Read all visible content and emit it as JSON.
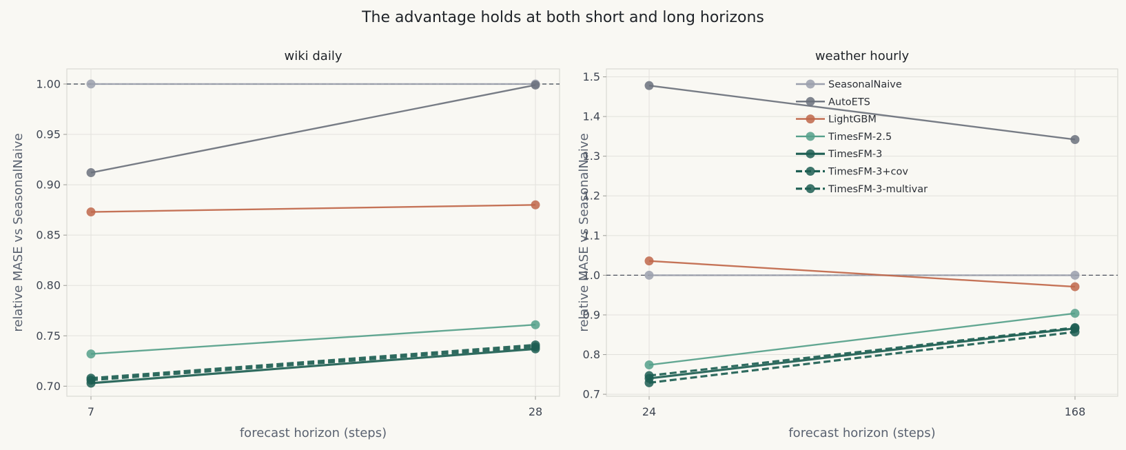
{
  "figure": {
    "suptitle": "The advantage holds at both short and long horizons"
  },
  "chart_data": [
    {
      "type": "line",
      "title": "wiki daily",
      "xlabel": "forecast horizon (steps)",
      "ylabel": "relative MASE vs SeasonalNaive",
      "x": [
        7,
        28
      ],
      "x_tick_labels": [
        "7",
        "28"
      ],
      "ylim": [
        0.69,
        1.015
      ],
      "y_ticks": [
        "0.70",
        "0.75",
        "0.80",
        "0.85",
        "0.90",
        "0.95",
        "1.00"
      ],
      "grid": true,
      "reference_line": 1.0,
      "series": [
        {
          "name": "SeasonalNaive",
          "values": [
            1.0,
            1.0
          ],
          "color": "#9ba0ad",
          "style": "solid"
        },
        {
          "name": "AutoETS",
          "values": [
            0.912,
            0.999
          ],
          "color": "#6b717c",
          "style": "solid"
        },
        {
          "name": "LightGBM",
          "values": [
            0.873,
            0.88
          ],
          "color": "#c0674a",
          "style": "solid"
        },
        {
          "name": "TimesFM-2.5",
          "values": [
            0.732,
            0.761
          ],
          "color": "#55a08a",
          "style": "solid"
        },
        {
          "name": "TimesFM-3",
          "values": [
            0.703,
            0.737
          ],
          "color": "#1d5e52",
          "style": "solid"
        },
        {
          "name": "TimesFM-3+cov",
          "values": [
            0.706,
            0.739
          ],
          "color": "#1d5e52",
          "style": "dashed"
        },
        {
          "name": "TimesFM-3-multivar",
          "values": [
            0.708,
            0.741
          ],
          "color": "#1d5e52",
          "style": "dashed"
        }
      ]
    },
    {
      "type": "line",
      "title": "weather hourly",
      "xlabel": "forecast horizon (steps)",
      "ylabel": "relative MASE vs SeasonalNaive",
      "x": [
        24,
        168
      ],
      "x_tick_labels": [
        "24",
        "168"
      ],
      "ylim": [
        0.695,
        1.52
      ],
      "y_ticks": [
        "0.7",
        "0.8",
        "0.9",
        "1.0",
        "1.1",
        "1.2",
        "1.3",
        "1.4",
        "1.5"
      ],
      "grid": true,
      "reference_line": 1.0,
      "legend_position": "upper-center",
      "series": [
        {
          "name": "SeasonalNaive",
          "values": [
            1.0,
            1.0
          ],
          "color": "#9ba0ad",
          "style": "solid"
        },
        {
          "name": "AutoETS",
          "values": [
            1.478,
            1.342
          ],
          "color": "#6b717c",
          "style": "solid"
        },
        {
          "name": "LightGBM",
          "values": [
            1.036,
            0.971
          ],
          "color": "#c0674a",
          "style": "solid"
        },
        {
          "name": "TimesFM-2.5",
          "values": [
            0.774,
            0.904
          ],
          "color": "#55a08a",
          "style": "solid"
        },
        {
          "name": "TimesFM-3",
          "values": [
            0.74,
            0.866
          ],
          "color": "#1d5e52",
          "style": "solid"
        },
        {
          "name": "TimesFM-3+cov",
          "values": [
            0.747,
            0.868
          ],
          "color": "#1d5e52",
          "style": "dashed"
        },
        {
          "name": "TimesFM-3-multivar",
          "values": [
            0.729,
            0.857
          ],
          "color": "#1d5e52",
          "style": "dashed"
        }
      ]
    }
  ]
}
